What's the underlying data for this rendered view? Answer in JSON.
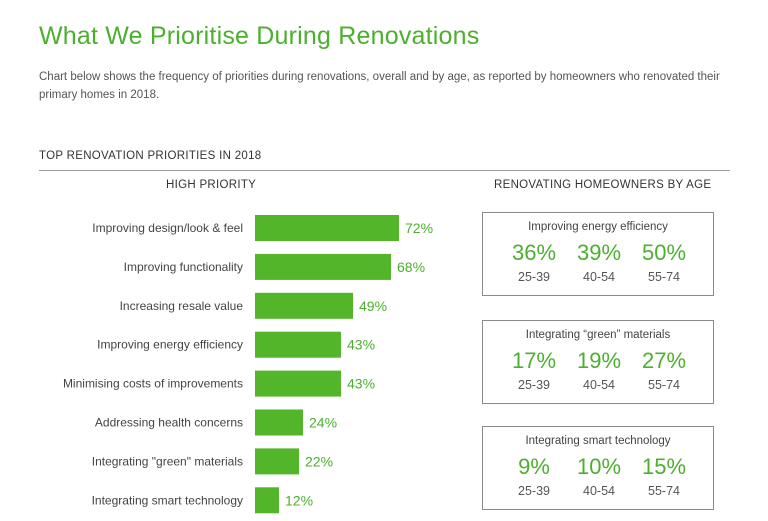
{
  "title": "What We Prioritise During Renovations",
  "subtitle": "Chart below shows the frequency of priorities during renovations, overall and by age, as reported by homeowners who renovated their primary homes in 2018.",
  "section_title": "TOP RENOVATION PRIORITIES IN 2018",
  "left_heading": "HIGH PRIORITY",
  "right_heading": "RENOVATING HOMEOWNERS BY AGE",
  "colors": {
    "accent": "#4caf2e",
    "bar": "#52b52a",
    "text": "#444444",
    "rule": "#9a9a9a"
  },
  "chart_data": [
    {
      "type": "bar",
      "orientation": "horizontal",
      "title": "HIGH PRIORITY",
      "categories": [
        "Improving design/look & feel",
        "Improving functionality",
        "Increasing resale value",
        "Improving energy efficiency",
        "Minimising costs of improvements",
        "Addressing health concerns",
        "Integrating \"green\" materials",
        "Integrating smart technology"
      ],
      "values": [
        72,
        68,
        49,
        43,
        43,
        24,
        22,
        12
      ],
      "value_labels": [
        "72%",
        "68%",
        "49%",
        "43%",
        "43%",
        "24%",
        "22%",
        "12%"
      ],
      "unit": "%",
      "xlim": [
        0,
        100
      ],
      "grid": false,
      "legend": "none"
    },
    {
      "type": "table",
      "title": "RENOVATING HOMEOWNERS BY AGE",
      "age_groups": [
        "25-39",
        "40-54",
        "55-74"
      ],
      "panels": [
        {
          "title": "Improving energy efficiency",
          "values": [
            "36%",
            "39%",
            "50%"
          ]
        },
        {
          "title": "Integrating “green” materials",
          "values": [
            "17%",
            "19%",
            "27%"
          ]
        },
        {
          "title": "Integrating smart technology",
          "values": [
            "9%",
            "10%",
            "15%"
          ]
        }
      ]
    }
  ]
}
